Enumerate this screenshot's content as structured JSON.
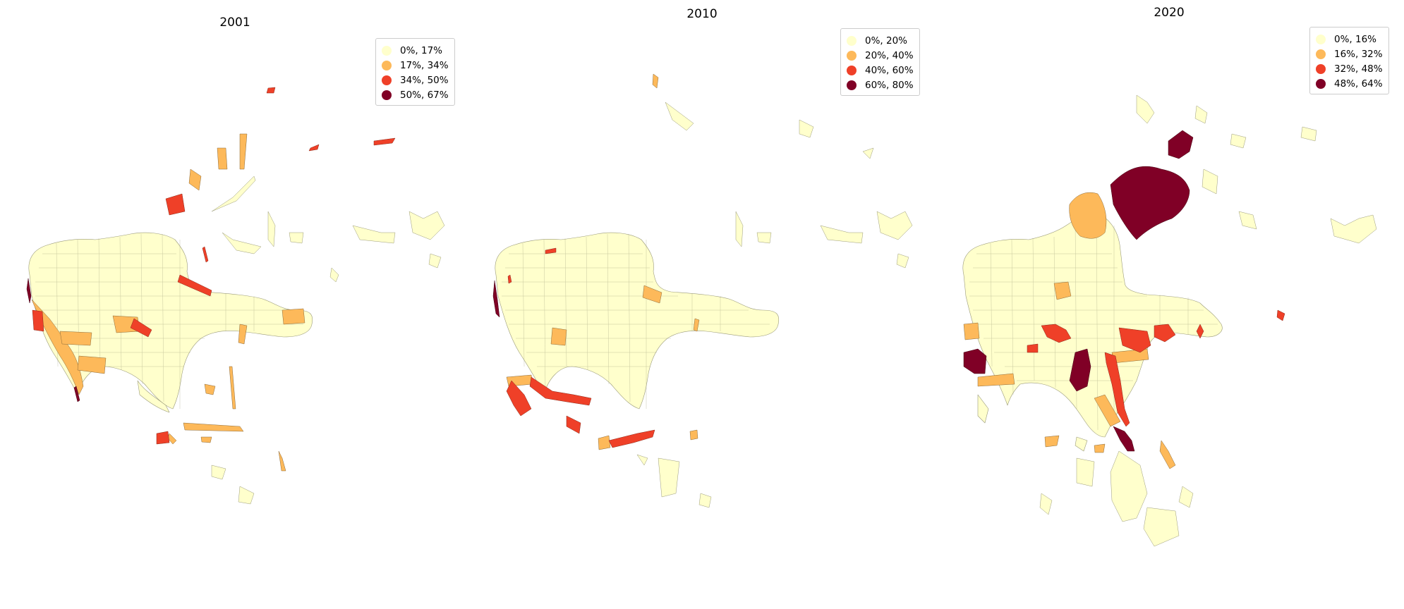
{
  "panels": [
    {
      "year": "2001",
      "legend": [
        {
          "label": "0%, 17%",
          "color": "#ffffcc"
        },
        {
          "label": "17%, 34%",
          "color": "#fdb95a"
        },
        {
          "label": "34%, 50%",
          "color": "#ef4028"
        },
        {
          "label": "50%, 67%",
          "color": "#800026"
        }
      ]
    },
    {
      "year": "2010",
      "legend": [
        {
          "label": "0%, 20%",
          "color": "#ffffcc"
        },
        {
          "label": "20%, 40%",
          "color": "#fdb95a"
        },
        {
          "label": "40%, 60%",
          "color": "#ef4028"
        },
        {
          "label": "60%, 80%",
          "color": "#800026"
        }
      ]
    },
    {
      "year": "2020",
      "legend": [
        {
          "label": "0%, 16%",
          "color": "#ffffcc"
        },
        {
          "label": "16%, 32%",
          "color": "#fdb95a"
        },
        {
          "label": "32%, 48%",
          "color": "#ef4028"
        },
        {
          "label": "48%, 64%",
          "color": "#800026"
        }
      ]
    }
  ]
}
